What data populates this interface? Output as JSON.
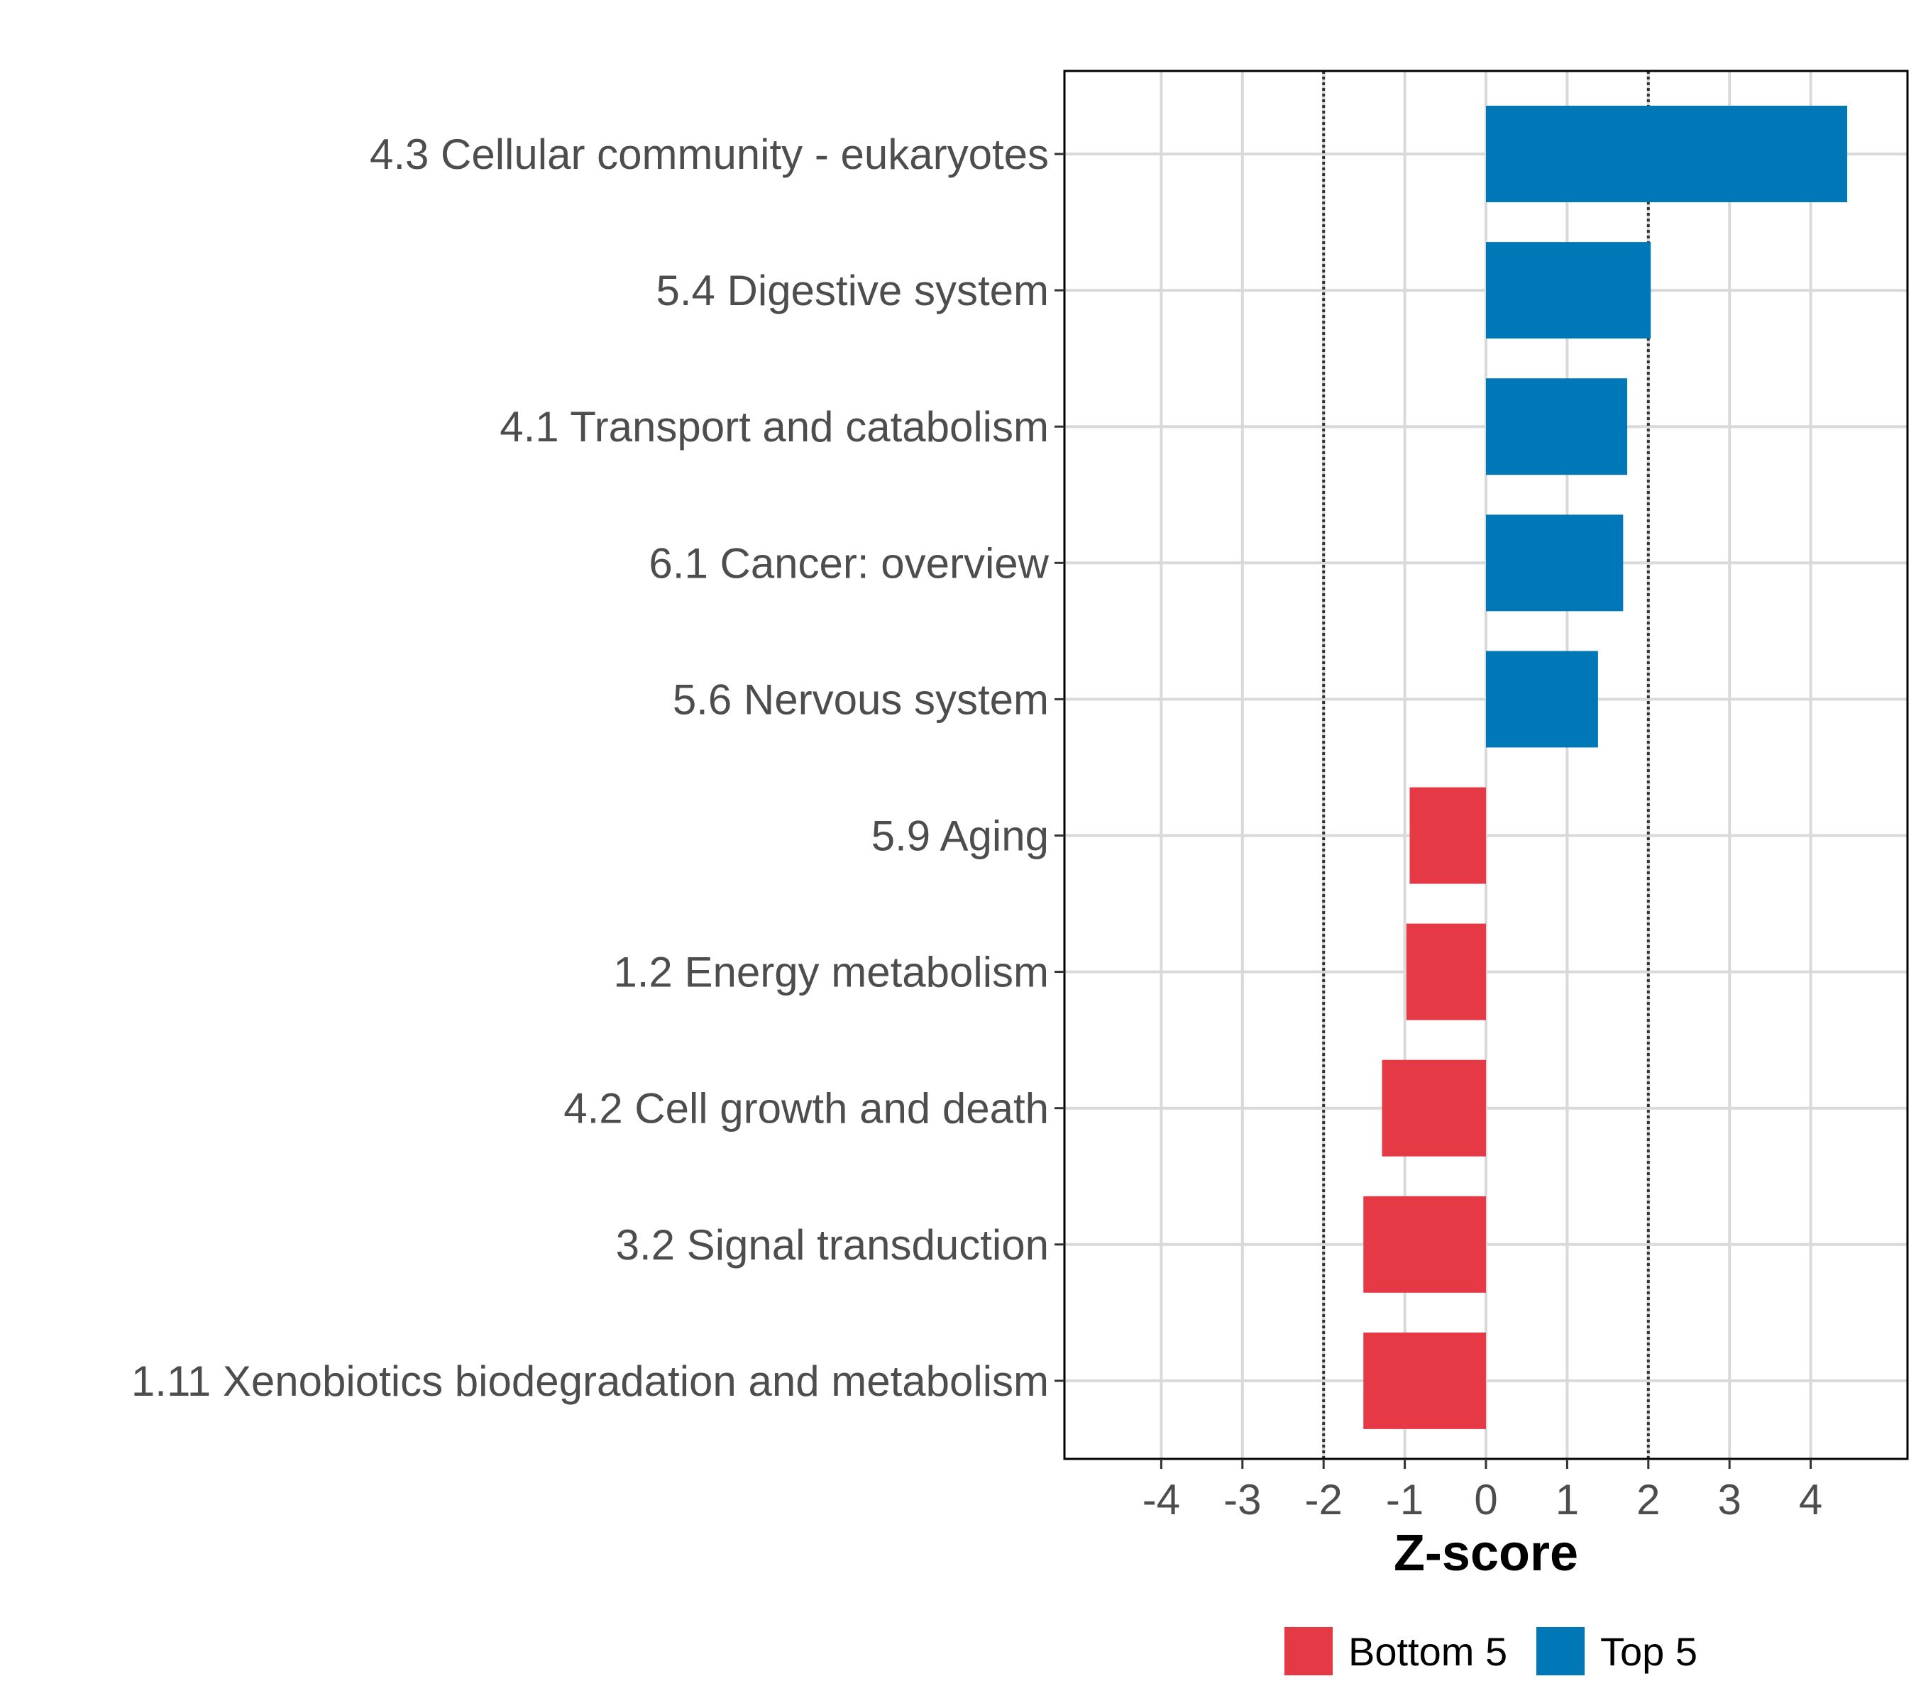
{
  "chart_data": {
    "type": "bar",
    "orientation": "horizontal",
    "title": "",
    "xlabel": "Z-score",
    "ylabel": "",
    "xlim": [
      -5.2,
      5.2
    ],
    "xticks": [
      -4,
      -3,
      -2,
      -1,
      0,
      1,
      2,
      3,
      4
    ],
    "xtick_labels": [
      "-4",
      "-3",
      "-2",
      "-1",
      "0",
      "1",
      "2",
      "3",
      "4"
    ],
    "threshold_lines": [
      -2,
      2
    ],
    "grid": true,
    "legend_position": "bottom",
    "categories": [
      "4.3 Cellular community - eukaryotes",
      "5.4 Digestive system",
      "4.1 Transport and catabolism",
      "6.1 Cancer: overview",
      "5.6 Nervous system",
      "5.9 Aging",
      "1.2 Energy metabolism",
      "4.2 Cell growth and death",
      "3.2 Signal transduction",
      "1.11 Xenobiotics biodegradation and metabolism"
    ],
    "values": [
      4.45,
      2.03,
      1.74,
      1.69,
      1.38,
      -0.94,
      -0.98,
      -1.28,
      -1.51,
      -1.51
    ],
    "groups": [
      "Top 5",
      "Top 5",
      "Top 5",
      "Top 5",
      "Top 5",
      "Bottom 5",
      "Bottom 5",
      "Bottom 5",
      "Bottom 5",
      "Bottom 5"
    ],
    "legend": [
      {
        "name": "Bottom 5",
        "color": "#E63946"
      },
      {
        "name": "Top 5",
        "color": "#0077B6"
      }
    ]
  }
}
